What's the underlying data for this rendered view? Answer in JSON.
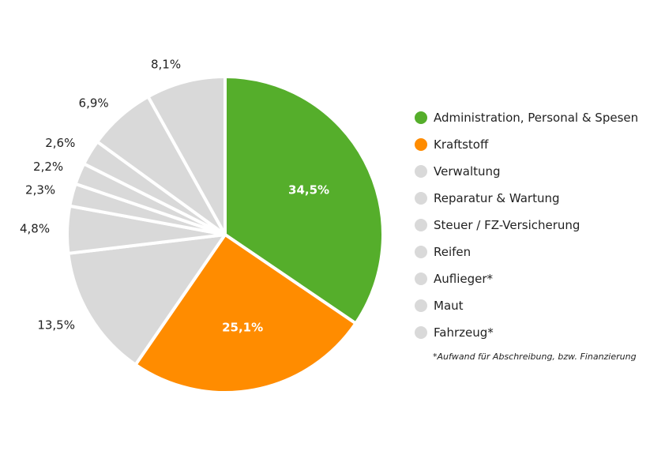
{
  "chart_data": {
    "type": "pie",
    "slices": [
      {
        "name": "Administration, Personal & Spesen",
        "value": 34.5,
        "label": "34,5%",
        "color": "#55ae2b"
      },
      {
        "name": "Kraftstoff",
        "value": 25.1,
        "label": "25,1%",
        "color": "#ff8c00"
      },
      {
        "name": "Verwaltung",
        "value": 13.5,
        "label": "13,5%",
        "color": "#d9d9d9"
      },
      {
        "name": "Reparatur & Wartung",
        "value": 4.8,
        "label": "4,8%",
        "color": "#d9d9d9"
      },
      {
        "name": "Steuer / FZ-Versicherung",
        "value": 2.3,
        "label": "2,3%",
        "color": "#d9d9d9"
      },
      {
        "name": "Reifen",
        "value": 2.2,
        "label": "2,2%",
        "color": "#d9d9d9"
      },
      {
        "name": "Auflieger*",
        "value": 2.6,
        "label": "2,6%",
        "color": "#d9d9d9"
      },
      {
        "name": "Maut",
        "value": 6.9,
        "label": "6,9%",
        "color": "#d9d9d9"
      },
      {
        "name": "Fahrzeug*",
        "value": 8.1,
        "label": "8,1%",
        "color": "#d9d9d9"
      }
    ],
    "legend_position": "right",
    "footnote": "*Aufwand für Abschreibung, bzw. Finanzierung"
  }
}
